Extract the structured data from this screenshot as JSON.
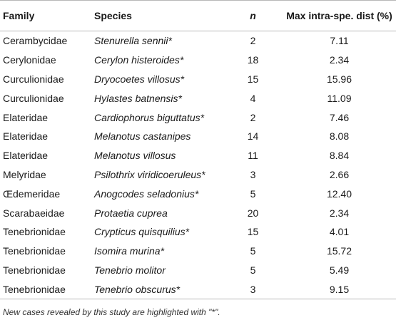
{
  "table": {
    "headers": {
      "family": "Family",
      "species": "Species",
      "n": "n",
      "dist": "Max intra-spe. dist (%)"
    },
    "rows": [
      {
        "family": "Cerambycidae",
        "species": "Stenurella sennii*",
        "n": "2",
        "dist": "7.11"
      },
      {
        "family": "Cerylonidae",
        "species": "Cerylon histeroides*",
        "n": "18",
        "dist": "2.34"
      },
      {
        "family": "Curculionidae",
        "species": "Dryocoetes villosus*",
        "n": "15",
        "dist": "15.96"
      },
      {
        "family": "Curculionidae",
        "species": "Hylastes batnensis*",
        "n": "4",
        "dist": "11.09"
      },
      {
        "family": "Elateridae",
        "species": "Cardiophorus biguttatus*",
        "n": "2",
        "dist": "7.46"
      },
      {
        "family": "Elateridae",
        "species": "Melanotus castanipes",
        "n": "14",
        "dist": "8.08"
      },
      {
        "family": "Elateridae",
        "species": "Melanotus villosus",
        "n": "11",
        "dist": "8.84"
      },
      {
        "family": "Melyridae",
        "species": "Psilothrix viridicoeruleus*",
        "n": "3",
        "dist": "2.66"
      },
      {
        "family": "Œdemeridae",
        "species": "Anogcodes seladonius*",
        "n": "5",
        "dist": "12.40"
      },
      {
        "family": "Scarabaeidae",
        "species": "Protaetia cuprea",
        "n": "20",
        "dist": "2.34"
      },
      {
        "family": "Tenebrionidae",
        "species": "Crypticus quisquilius*",
        "n": "15",
        "dist": "4.01"
      },
      {
        "family": "Tenebrionidae",
        "species": "Isomira murina*",
        "n": "5",
        "dist": "15.72"
      },
      {
        "family": "Tenebrionidae",
        "species": "Tenebrio molitor",
        "n": "5",
        "dist": "5.49"
      },
      {
        "family": "Tenebrionidae",
        "species": "Tenebrio obscurus*",
        "n": "3",
        "dist": "9.15"
      }
    ]
  },
  "footnote": "New cases revealed by this study are highlighted with \"*\"."
}
